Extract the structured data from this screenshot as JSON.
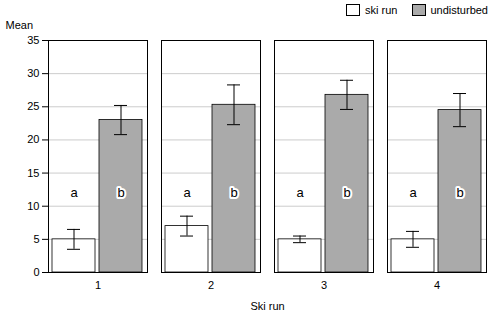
{
  "chart_data": {
    "type": "bar",
    "categories": [
      "1",
      "2",
      "3",
      "4"
    ],
    "series": [
      {
        "name": "ski run",
        "color": "#ffffff",
        "values": [
          5.0,
          7.0,
          5.0,
          5.0
        ],
        "errors": [
          1.5,
          1.5,
          0.5,
          1.2
        ]
      },
      {
        "name": "undisturbed",
        "color": "#aaaaaa",
        "values": [
          23.0,
          25.3,
          26.8,
          24.5
        ],
        "errors": [
          2.2,
          3.0,
          2.2,
          2.5
        ]
      }
    ],
    "xlabel": "Ski run",
    "ylabel": "Mean",
    "ylim": [
      0,
      35
    ],
    "yticks": [
      0,
      5,
      10,
      15,
      20,
      25,
      30,
      35
    ],
    "grid": true,
    "legend": "upper right",
    "annotations": [
      {
        "text": "a",
        "category": "1",
        "series": "ski run",
        "y": 12.0
      },
      {
        "text": "b",
        "category": "1",
        "series": "undisturbed",
        "y": 12.0
      },
      {
        "text": "a",
        "category": "2",
        "series": "ski run",
        "y": 12.0
      },
      {
        "text": "b",
        "category": "2",
        "series": "undisturbed",
        "y": 12.0
      },
      {
        "text": "a",
        "category": "3",
        "series": "ski run",
        "y": 12.0
      },
      {
        "text": "b",
        "category": "3",
        "series": "undisturbed",
        "y": 12.0
      },
      {
        "text": "a",
        "category": "4",
        "series": "ski run",
        "y": 12.0
      },
      {
        "text": "b",
        "category": "4",
        "series": "undisturbed",
        "y": 12.0
      }
    ]
  }
}
